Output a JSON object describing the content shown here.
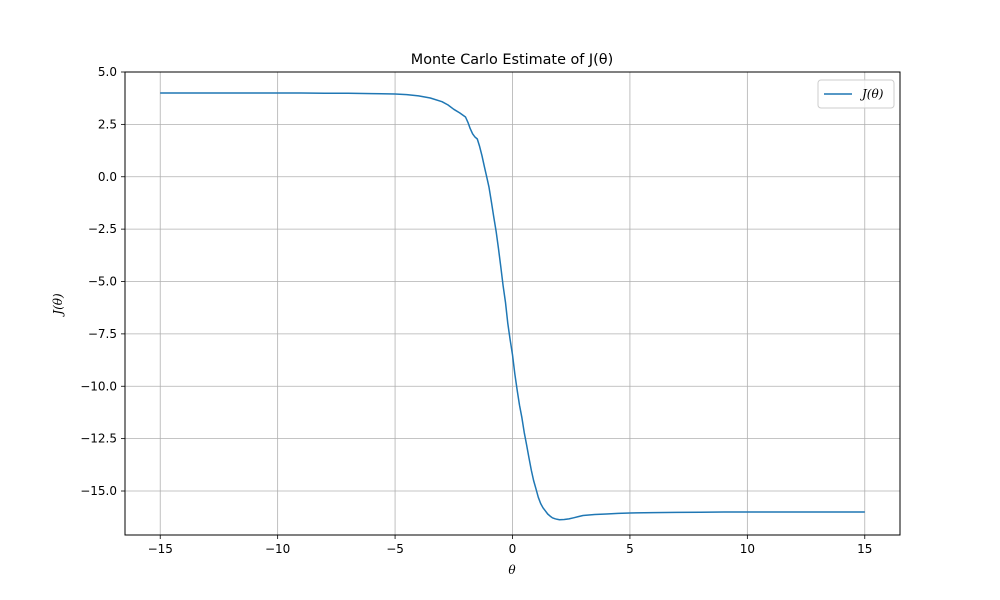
{
  "chart_data": {
    "type": "line",
    "title": "Monte Carlo Estimate of J(θ)",
    "xlabel": "θ",
    "ylabel": "J(θ)",
    "xlim": [
      -16.5,
      16.5
    ],
    "ylim": [
      -17.1,
      5.0
    ],
    "xticks": [
      -15,
      -10,
      -5,
      0,
      5,
      10,
      15
    ],
    "xtick_labels": [
      "−15",
      "−10",
      "−5",
      "0",
      "5",
      "10",
      "15"
    ],
    "yticks": [
      5.0,
      2.5,
      0.0,
      -2.5,
      -5.0,
      -7.5,
      -10.0,
      -12.5,
      -15.0
    ],
    "ytick_labels": [
      "5.0",
      "2.5",
      "0.0",
      "−2.5",
      "−5.0",
      "−7.5",
      "−10.0",
      "−12.5",
      "−15.0"
    ],
    "grid": true,
    "legend_position": "top-right",
    "series": [
      {
        "name": "J(θ)",
        "color": "#1f77b4",
        "x": [
          -15,
          -14,
          -13,
          -12,
          -11,
          -10,
          -9,
          -8,
          -7,
          -6,
          -5,
          -4.5,
          -4,
          -3.5,
          -3,
          -2.75,
          -2.5,
          -2.25,
          -2,
          -1.9,
          -1.8,
          -1.7,
          -1.6,
          -1.5,
          -1.4,
          -1.3,
          -1.2,
          -1.1,
          -1.0,
          -0.9,
          -0.8,
          -0.7,
          -0.6,
          -0.5,
          -0.4,
          -0.3,
          -0.2,
          -0.1,
          0.0,
          0.1,
          0.2,
          0.3,
          0.4,
          0.5,
          0.6,
          0.7,
          0.8,
          0.9,
          1.0,
          1.1,
          1.2,
          1.3,
          1.4,
          1.5,
          1.6,
          1.7,
          1.8,
          1.9,
          2.0,
          2.2,
          2.4,
          2.6,
          2.8,
          3.0,
          3.5,
          4,
          4.5,
          5,
          6,
          7,
          8,
          9,
          10,
          11,
          12,
          13,
          14,
          15
        ],
        "y": [
          4.0,
          4.0,
          4.0,
          4.0,
          4.0,
          4.0,
          4.0,
          3.99,
          3.99,
          3.97,
          3.95,
          3.92,
          3.86,
          3.76,
          3.58,
          3.43,
          3.22,
          3.05,
          2.85,
          2.6,
          2.3,
          2.05,
          1.9,
          1.8,
          1.45,
          1.0,
          0.5,
          0.0,
          -0.5,
          -1.2,
          -1.9,
          -2.6,
          -3.4,
          -4.3,
          -5.2,
          -6.0,
          -7.0,
          -7.8,
          -8.5,
          -9.4,
          -10.2,
          -10.9,
          -11.5,
          -12.2,
          -12.8,
          -13.4,
          -14.0,
          -14.5,
          -14.9,
          -15.3,
          -15.6,
          -15.8,
          -15.95,
          -16.1,
          -16.2,
          -16.28,
          -16.32,
          -16.35,
          -16.37,
          -16.36,
          -16.33,
          -16.28,
          -16.22,
          -16.17,
          -16.12,
          -16.1,
          -16.07,
          -16.05,
          -16.03,
          -16.02,
          -16.01,
          -16.0,
          -16.0,
          -16.0,
          -16.0,
          -16.0,
          -16.0,
          -16.0
        ]
      }
    ]
  }
}
